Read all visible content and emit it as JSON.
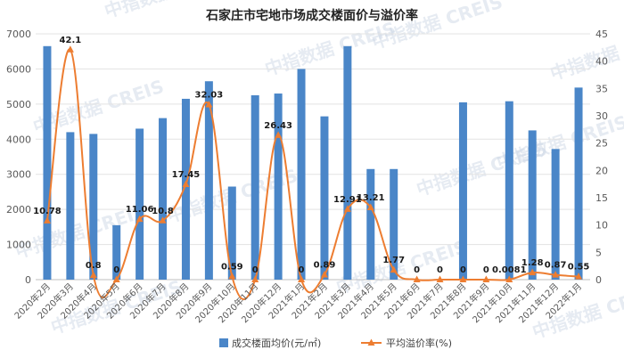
{
  "watermark": "中指数据 CREIS",
  "chart_data": {
    "type": "bar+line",
    "title": "石家庄市宅地市场成交楼面价与溢价率",
    "categories": [
      "2020年2月",
      "2020年3月",
      "2020年4月",
      "2020年5月",
      "2020年6月",
      "2020年7月",
      "2020年8月",
      "2020年9月",
      "2020年10月",
      "2020年11月",
      "2020年12月",
      "2021年1月",
      "2021年2月",
      "2021年3月",
      "2021年4月",
      "2021年5月",
      "2021年6月",
      "2021年7月",
      "2021年8月",
      "2021年9月",
      "2021年10月",
      "2021年11月",
      "2021年12月",
      "2022年1月"
    ],
    "left_axis": {
      "ylim": [
        0,
        7000
      ],
      "ticks": [
        "0",
        "1000",
        "2000",
        "3000",
        "4000",
        "5000",
        "6000",
        "7000"
      ]
    },
    "right_axis": {
      "ylim": [
        0,
        45
      ],
      "ticks": [
        "0",
        "5",
        "10",
        "15",
        "20",
        "25",
        "30",
        "35",
        "40",
        "45"
      ]
    },
    "series": [
      {
        "name": "成交楼面均价(元/㎡)",
        "type": "bar",
        "axis": "left",
        "color": "#4a86c8",
        "values": [
          6650,
          4200,
          4150,
          1550,
          4300,
          4600,
          5150,
          5650,
          2650,
          5250,
          5300,
          6000,
          4650,
          6650,
          3150,
          3150,
          null,
          null,
          5050,
          null,
          5080,
          4250,
          3720,
          5470
        ]
      },
      {
        "name": "平均溢价率(%)",
        "type": "line",
        "axis": "right",
        "color": "#ed7d31",
        "values": [
          10.78,
          42.1,
          0.8,
          0,
          11.06,
          10.8,
          17.45,
          32.03,
          0.59,
          0,
          26.43,
          0,
          0.89,
          12.91,
          13.21,
          1.77,
          0,
          0,
          0,
          0,
          0.0081,
          1.28,
          0.87,
          0.55
        ],
        "labels": [
          "10.78",
          "42.1",
          "0.8",
          "0",
          "11.06",
          "10.8",
          "17.45",
          "32.03",
          "0.59",
          "0",
          "26.43",
          "0",
          "0.89",
          "12.91",
          "13.21",
          "1.77",
          "0",
          "0",
          "0",
          "0",
          "0.0081",
          "1.28",
          "0.87",
          "0.55"
        ]
      }
    ],
    "grid": true,
    "legend_position": "bottom"
  }
}
